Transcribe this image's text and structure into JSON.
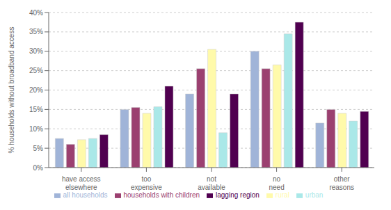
{
  "chart_data": {
    "type": "bar",
    "ylabel": "% households without broadband access",
    "categories": [
      "have access elsewhere",
      "too expensive",
      "not available",
      "no need",
      "other reasons"
    ],
    "series": [
      {
        "name": "all households",
        "color": "#a0b4d8",
        "values": [
          7.5,
          15.0,
          19.0,
          30.0,
          11.5
        ]
      },
      {
        "name": "households with children",
        "color": "#9b4070",
        "values": [
          6.0,
          15.5,
          25.5,
          25.5,
          15.0
        ]
      },
      {
        "name": "rural",
        "color": "#fffaaa",
        "values": [
          7.2,
          14.0,
          30.5,
          26.5,
          14.0
        ]
      },
      {
        "name": "urban",
        "color": "#aae8e8",
        "values": [
          7.5,
          15.7,
          9.0,
          34.5,
          12.0
        ]
      },
      {
        "name": "lagging region",
        "color": "#500050",
        "values": [
          8.5,
          21.0,
          19.0,
          37.5,
          14.5
        ]
      }
    ],
    "ylim": [
      0,
      40
    ],
    "yticks": [
      {
        "value": 0,
        "label": "0%"
      },
      {
        "value": 5,
        "label": "5%"
      },
      {
        "value": 10,
        "label": "10%"
      },
      {
        "value": 15,
        "label": "15%"
      },
      {
        "value": 20,
        "label": "20%"
      },
      {
        "value": 25,
        "label": "25%"
      },
      {
        "value": 30,
        "label": "30%"
      },
      {
        "value": 35,
        "label": "35%"
      },
      {
        "value": 40,
        "label": "40%"
      }
    ],
    "grid": true,
    "legend": "bottom"
  }
}
